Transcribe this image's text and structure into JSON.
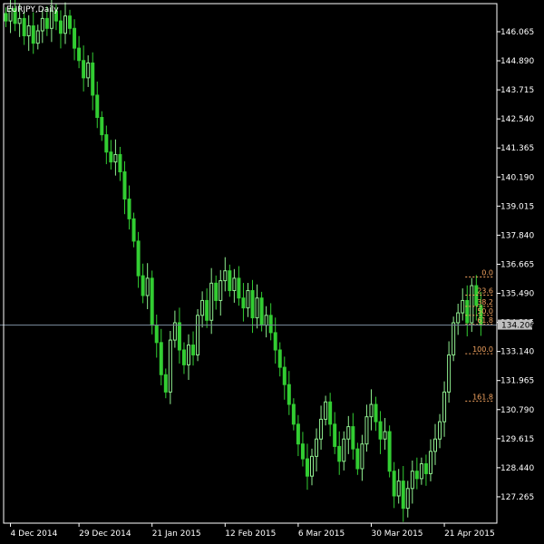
{
  "chart_data": {
    "type": "candlestick",
    "title": "EURJPY,Daily",
    "colors": {
      "background": "#000000",
      "axis": "#ffffff",
      "candle": "#90ee90",
      "bear_candle": "#32cd32",
      "fibonacci": "#f4a460",
      "price_line": "#778899"
    },
    "y_range": [
      126.2,
      147.2
    ],
    "price_ticks": [
      "146.065",
      "144.890",
      "143.715",
      "142.540",
      "141.365",
      "140.190",
      "139.015",
      "137.840",
      "136.665",
      "135.490",
      "134.315",
      "133.140",
      "131.965",
      "130.790",
      "129.615",
      "128.440",
      "127.265"
    ],
    "x_range": [
      0,
      108
    ],
    "date_ticks": [
      {
        "label": "4 Dec 2014",
        "index": 1
      },
      {
        "label": "29 Dec 2014",
        "index": 16
      },
      {
        "label": "21 Jan 2015",
        "index": 32
      },
      {
        "label": "12 Feb 2015",
        "index": 48
      },
      {
        "label": "6 Mar 2015",
        "index": 64
      },
      {
        "label": "30 Mar 2015",
        "index": 80
      },
      {
        "label": "21 Apr 2015",
        "index": 96
      }
    ],
    "current_price": "134.206",
    "closes": [
      146.5,
      147.0,
      146.4,
      146.6,
      145.9,
      146.3,
      145.6,
      146.1,
      146.6,
      146.2,
      146.9,
      146.5,
      146.0,
      146.7,
      146.2,
      145.4,
      144.9,
      144.2,
      144.8,
      143.5,
      142.6,
      141.9,
      141.2,
      140.8,
      141.1,
      140.4,
      139.3,
      138.5,
      137.6,
      136.2,
      135.4,
      136.1,
      134.2,
      133.5,
      132.2,
      131.5,
      133.6,
      134.3,
      133.2,
      132.6,
      133.4,
      133.0,
      134.6,
      135.2,
      134.4,
      135.9,
      135.2,
      136.0,
      136.4,
      135.6,
      136.1,
      135.3,
      134.9,
      135.6,
      134.5,
      135.3,
      134.2,
      134.6,
      133.9,
      133.2,
      132.5,
      131.8,
      131.0,
      130.2,
      129.4,
      128.8,
      128.1,
      128.9,
      129.6,
      130.4,
      131.1,
      130.2,
      129.3,
      128.7,
      129.6,
      130.1,
      129.2,
      128.4,
      129.4,
      130.5,
      131.0,
      130.3,
      129.6,
      129.9,
      128.3,
      127.3,
      127.9,
      126.8,
      127.6,
      128.3,
      128.0,
      128.6,
      128.2,
      129.1,
      129.6,
      130.3,
      131.5,
      133.0,
      134.3,
      134.7,
      135.2,
      134.3,
      135.8,
      135.0,
      134.2
    ],
    "fibonacci": {
      "high": 136.15,
      "low": 133.05,
      "levels": [
        {
          "label": "0.0",
          "ratio": 0
        },
        {
          "label": "23.6",
          "ratio": 0.236
        },
        {
          "label": "38.2",
          "ratio": 0.382
        },
        {
          "label": "50.0",
          "ratio": 0.5
        },
        {
          "label": "61.8",
          "ratio": 0.618
        },
        {
          "label": "100.0",
          "ratio": 1.0
        },
        {
          "label": "161.8",
          "ratio": 1.618
        }
      ],
      "start_index": 101
    }
  }
}
